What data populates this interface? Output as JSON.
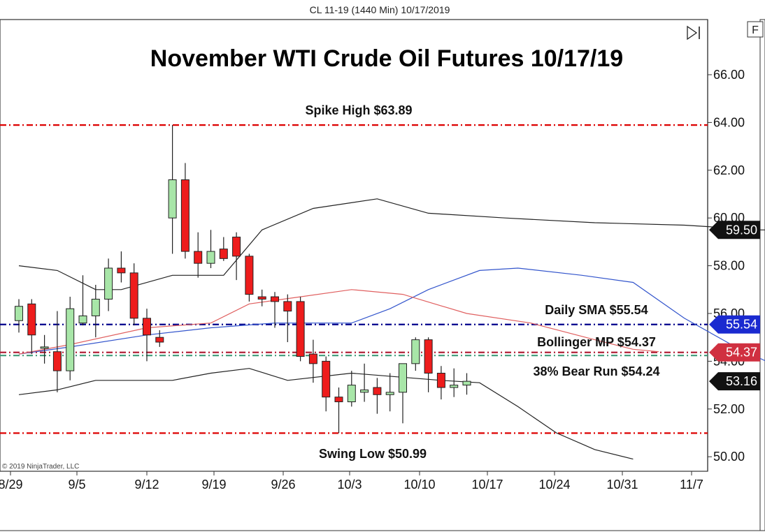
{
  "header": {
    "instrument_line": "CL 11-19 (1440 Min)  10/17/2019"
  },
  "controls": {
    "f_button_label": "F"
  },
  "copyright": "© 2019 NinjaTrader, LLC",
  "colors": {
    "up_candle": "#a8e6a8",
    "down_candle": "#ee1c1c",
    "level_red": "#dd0000",
    "level_blue": "#00008b",
    "level_maroon": "#b2223a",
    "level_green": "#3f9a78",
    "band": "#222222",
    "sma": "#3355cc",
    "midpoint": "#e06060"
  },
  "chart_data": {
    "type": "candlestick",
    "title": "November WTI Crude Oil Futures 10/17/19",
    "x_tick_labels": [
      "8/29",
      "9/5",
      "9/12",
      "9/19",
      "9/26",
      "10/3",
      "10/10",
      "10/17",
      "10/24",
      "10/31",
      "11/7"
    ],
    "y_tick_labels": [
      "50.00",
      "52.00",
      "54.00",
      "56.00",
      "58.00",
      "60.00",
      "62.00",
      "64.00",
      "66.00"
    ],
    "ylim": [
      49.6,
      67.2
    ],
    "candles": [
      {
        "date": "8/29",
        "open": 55.7,
        "high": 56.6,
        "low": 55.2,
        "close": 56.3
      },
      {
        "date": "8/30",
        "open": 56.4,
        "high": 56.6,
        "low": 54.3,
        "close": 55.1
      },
      {
        "date": "9/3",
        "open": 54.6,
        "high": 55.1,
        "low": 53.9,
        "close": 54.6
      },
      {
        "date": "9/4",
        "open": 54.4,
        "high": 56.1,
        "low": 52.7,
        "close": 53.6
      },
      {
        "date": "9/5",
        "open": 53.6,
        "high": 56.7,
        "low": 53.2,
        "close": 56.2
      },
      {
        "date": "9/6",
        "open": 55.6,
        "high": 57.6,
        "low": 55.5,
        "close": 55.9
      },
      {
        "date": "9/9",
        "open": 55.9,
        "high": 57.2,
        "low": 55.0,
        "close": 56.6
      },
      {
        "date": "9/10",
        "open": 56.6,
        "high": 58.3,
        "low": 56.1,
        "close": 57.9
      },
      {
        "date": "9/11",
        "open": 57.9,
        "high": 58.6,
        "low": 57.3,
        "close": 57.7
      },
      {
        "date": "9/12",
        "open": 57.7,
        "high": 58.1,
        "low": 55.5,
        "close": 55.8
      },
      {
        "date": "9/13",
        "open": 55.8,
        "high": 56.2,
        "low": 54.0,
        "close": 55.1
      },
      {
        "date": "9/16",
        "open": 55.0,
        "high": 55.3,
        "low": 54.6,
        "close": 54.8
      },
      {
        "date": "9/17",
        "open": 60.0,
        "high": 63.89,
        "low": 58.5,
        "close": 61.6
      },
      {
        "date": "9/18",
        "open": 61.6,
        "high": 62.3,
        "low": 58.3,
        "close": 58.6
      },
      {
        "date": "9/19",
        "open": 58.6,
        "high": 59.4,
        "low": 57.5,
        "close": 58.1
      },
      {
        "date": "9/20",
        "open": 58.1,
        "high": 59.5,
        "low": 57.9,
        "close": 58.6
      },
      {
        "date": "9/23",
        "open": 58.7,
        "high": 59.2,
        "low": 58.2,
        "close": 58.3
      },
      {
        "date": "9/24",
        "open": 59.2,
        "high": 59.4,
        "low": 57.4,
        "close": 58.4
      },
      {
        "date": "9/25",
        "open": 58.4,
        "high": 58.5,
        "low": 56.5,
        "close": 56.8
      },
      {
        "date": "9/26",
        "open": 56.7,
        "high": 57.0,
        "low": 56.3,
        "close": 56.6
      },
      {
        "date": "9/27",
        "open": 56.7,
        "high": 56.9,
        "low": 55.4,
        "close": 56.5
      },
      {
        "date": "9/30",
        "open": 56.5,
        "high": 56.8,
        "low": 54.8,
        "close": 56.1
      },
      {
        "date": "10/1",
        "open": 56.5,
        "high": 56.7,
        "low": 54.0,
        "close": 54.2
      },
      {
        "date": "10/2",
        "open": 54.3,
        "high": 54.9,
        "low": 53.1,
        "close": 53.9
      },
      {
        "date": "10/3",
        "open": 54.0,
        "high": 54.2,
        "low": 51.9,
        "close": 52.5
      },
      {
        "date": "10/4",
        "open": 52.5,
        "high": 52.9,
        "low": 50.99,
        "close": 52.3
      },
      {
        "date": "10/7",
        "open": 52.3,
        "high": 53.6,
        "low": 52.1,
        "close": 53.0
      },
      {
        "date": "10/8",
        "open": 52.7,
        "high": 53.9,
        "low": 52.3,
        "close": 52.8
      },
      {
        "date": "10/9",
        "open": 52.9,
        "high": 53.3,
        "low": 51.8,
        "close": 52.6
      },
      {
        "date": "10/10",
        "open": 52.6,
        "high": 53.5,
        "low": 51.9,
        "close": 52.7
      },
      {
        "date": "10/11",
        "open": 52.7,
        "high": 53.9,
        "low": 51.4,
        "close": 53.9
      },
      {
        "date": "10/14",
        "open": 53.9,
        "high": 55.0,
        "low": 53.6,
        "close": 54.9
      },
      {
        "date": "10/15",
        "open": 54.9,
        "high": 55.0,
        "low": 52.7,
        "close": 53.5
      },
      {
        "date": "10/16",
        "open": 53.5,
        "high": 53.8,
        "low": 52.4,
        "close": 52.9
      },
      {
        "date": "10/17",
        "open": 52.9,
        "high": 53.7,
        "low": 52.5,
        "close": 53.0
      },
      {
        "date": "10/18",
        "open": 53.0,
        "high": 53.5,
        "low": 52.6,
        "close": 53.16
      }
    ],
    "bollinger_upper": [
      {
        "x": 0,
        "y": 58.0
      },
      {
        "x": 3,
        "y": 57.8
      },
      {
        "x": 6,
        "y": 57.0
      },
      {
        "x": 8,
        "y": 57.0
      },
      {
        "x": 12,
        "y": 57.6
      },
      {
        "x": 14,
        "y": 57.6
      },
      {
        "x": 16,
        "y": 57.6
      },
      {
        "x": 19,
        "y": 59.5
      },
      {
        "x": 23,
        "y": 60.4
      },
      {
        "x": 28,
        "y": 60.8
      },
      {
        "x": 32,
        "y": 60.2
      },
      {
        "x": 38,
        "y": 60.0
      },
      {
        "x": 45,
        "y": 59.8
      },
      {
        "x": 52,
        "y": 59.7
      },
      {
        "x": 58,
        "y": 59.5
      },
      {
        "x": 60,
        "y": 59.5
      }
    ],
    "bollinger_lower": [
      {
        "x": 0,
        "y": 52.6
      },
      {
        "x": 3,
        "y": 52.8
      },
      {
        "x": 6,
        "y": 53.2
      },
      {
        "x": 12,
        "y": 53.2
      },
      {
        "x": 15,
        "y": 53.5
      },
      {
        "x": 18,
        "y": 53.7
      },
      {
        "x": 21,
        "y": 53.2
      },
      {
        "x": 26,
        "y": 53.5
      },
      {
        "x": 33,
        "y": 53.2
      },
      {
        "x": 36,
        "y": 53.1
      },
      {
        "x": 39,
        "y": 52.1
      },
      {
        "x": 42,
        "y": 51.0
      },
      {
        "x": 45,
        "y": 50.3
      },
      {
        "x": 48,
        "y": 49.9
      }
    ],
    "sma": [
      {
        "x": 0,
        "y": 54.3
      },
      {
        "x": 4,
        "y": 54.6
      },
      {
        "x": 10,
        "y": 55.1
      },
      {
        "x": 15,
        "y": 55.4
      },
      {
        "x": 20,
        "y": 55.6
      },
      {
        "x": 26,
        "y": 55.6
      },
      {
        "x": 29,
        "y": 56.2
      },
      {
        "x": 32,
        "y": 57.0
      },
      {
        "x": 36,
        "y": 57.8
      },
      {
        "x": 39,
        "y": 57.9
      },
      {
        "x": 44,
        "y": 57.6
      },
      {
        "x": 48,
        "y": 57.3
      },
      {
        "x": 52,
        "y": 55.8
      },
      {
        "x": 56,
        "y": 54.6
      },
      {
        "x": 62,
        "y": 53.1
      }
    ],
    "bollinger_mid": [
      {
        "x": 0,
        "y": 54.3
      },
      {
        "x": 4,
        "y": 54.7
      },
      {
        "x": 10,
        "y": 55.4
      },
      {
        "x": 15,
        "y": 55.6
      },
      {
        "x": 18,
        "y": 56.4
      },
      {
        "x": 22,
        "y": 56.7
      },
      {
        "x": 26,
        "y": 57.0
      },
      {
        "x": 30,
        "y": 56.8
      },
      {
        "x": 35,
        "y": 56.0
      },
      {
        "x": 40,
        "y": 55.6
      },
      {
        "x": 45,
        "y": 54.9
      },
      {
        "x": 48,
        "y": 54.5
      },
      {
        "x": 50,
        "y": 54.4
      }
    ],
    "levels": [
      {
        "name": "spike-high",
        "label": "Spike High $63.89",
        "value": 63.89,
        "color": "#dd0000",
        "dash": "dashdot"
      },
      {
        "name": "daily-sma",
        "label": "Daily SMA $55.54",
        "value": 55.54,
        "color": "#00008b",
        "dash": "dashdot"
      },
      {
        "name": "bollinger-mp",
        "label": "Bollinger MP $54.37",
        "value": 54.37,
        "color": "#b2223a",
        "dash": "dashdot"
      },
      {
        "name": "bear-run-38",
        "label": "38% Bear Run $54.24",
        "value": 54.24,
        "color": "#3f9a78",
        "dash": "dashdot"
      },
      {
        "name": "swing-low",
        "label": "Swing Low $50.99",
        "value": 50.99,
        "color": "#dd0000",
        "dash": "dashdot"
      }
    ],
    "price_tags": [
      {
        "name": "bollinger-upper",
        "label": "59.50",
        "value": 59.5,
        "color": "#111111"
      },
      {
        "name": "daily-sma",
        "label": "55.54",
        "value": 55.54,
        "color": "#1a2ad0"
      },
      {
        "name": "bollinger-mp",
        "label": "54.37",
        "value": 54.37,
        "color": "#d03040"
      },
      {
        "name": "last-price",
        "label": "53.16",
        "value": 53.16,
        "color": "#111111"
      }
    ]
  }
}
